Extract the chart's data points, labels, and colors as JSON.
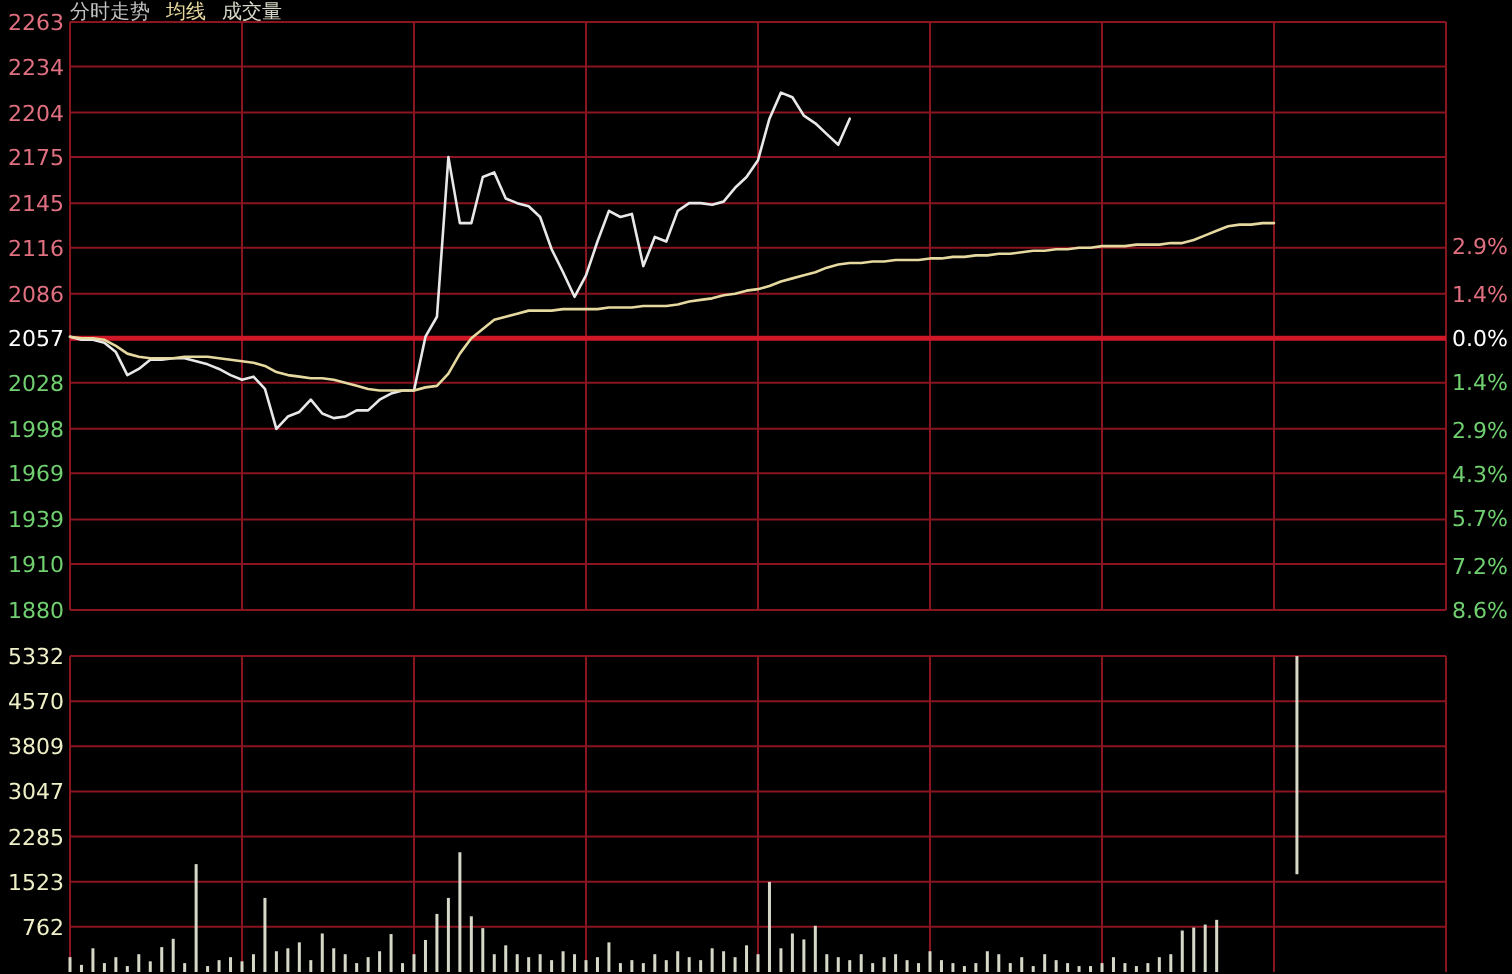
{
  "chart_data": [
    {
      "type": "line",
      "title": "分时走势",
      "tick_labels": "y",
      "grid": true,
      "categories": [
        null,
        null,
        null,
        null,
        null,
        null,
        null,
        null,
        null,
        null,
        null,
        null,
        null,
        null,
        null,
        null,
        null,
        null,
        null,
        null,
        null,
        null,
        null,
        null,
        null,
        null,
        null,
        null,
        null,
        null,
        null,
        null,
        null,
        null,
        null,
        null,
        null,
        null,
        null,
        null,
        null,
        null,
        null,
        null,
        null,
        null,
        null,
        null,
        null,
        null,
        null,
        null,
        null,
        null,
        null,
        null,
        null,
        null,
        null,
        null,
        null,
        null,
        null,
        null,
        null,
        null,
        null,
        null,
        null,
        null,
        null,
        null,
        null,
        null,
        null,
        null,
        null,
        null,
        null,
        null,
        null,
        null,
        null,
        null,
        null,
        null,
        null,
        null,
        null,
        null,
        null,
        null,
        null,
        null,
        null,
        null,
        null,
        null,
        null,
        null,
        null,
        null,
        null,
        null,
        null,
        null,
        null,
        null,
        null,
        null,
        null,
        null,
        null,
        null,
        null,
        null,
        null,
        null,
        null,
        null,
        null
      ],
      "ylim": [
        1880,
        2263
      ],
      "yticks": [
        1880,
        1910,
        1939,
        1969,
        1998,
        2028,
        2057,
        2086,
        2116,
        2145,
        2175,
        2204,
        2234,
        2263
      ],
      "y2lim": [
        -8.6,
        10.0
      ],
      "y2ticks": [
        {
          "value": 2.9,
          "label": "2.9%"
        },
        {
          "value": 1.4,
          "label": "1.4%"
        },
        {
          "value": 0,
          "label": "0.0%"
        },
        {
          "value": -1.4,
          "label": "1.4%"
        },
        {
          "value": -2.9,
          "label": "2.9%"
        },
        {
          "value": -4.3,
          "label": "4.3%"
        },
        {
          "value": -5.7,
          "label": "5.7%"
        },
        {
          "value": -7.2,
          "label": "7.2%"
        },
        {
          "value": -8.6,
          "label": "8.6%"
        }
      ],
      "ref_lines": [
        {
          "axis": "y",
          "value": 2057,
          "color": "#d01828"
        }
      ],
      "series": [
        {
          "color": "#e8e8e8",
          "values": [
            2058,
            2056,
            2056,
            2054,
            2048,
            2033,
            2037,
            2043,
            2043,
            2044,
            2044,
            2042,
            2040,
            2037,
            2033,
            2030,
            2032,
            2024,
            1998,
            2006,
            2009,
            2017,
            2008,
            2005,
            2006,
            2010,
            2010,
            2017,
            2021,
            2023,
            2023,
            2058,
            2071,
            2175,
            2132,
            2132,
            2162,
            2165,
            2148,
            2145,
            2143,
            2136,
            2115,
            2100,
            2084,
            2098,
            2120,
            2140,
            2136,
            2138,
            2104,
            2123,
            2120,
            2140,
            2145,
            2145,
            2144,
            2146,
            2155,
            2162,
            2173,
            2200,
            2217,
            2214,
            2202,
            2197,
            2190,
            2183,
            2200,
            null,
            null,
            null,
            null,
            null,
            null,
            null,
            null,
            null,
            null,
            null,
            null,
            null,
            null,
            null,
            null,
            null,
            null,
            null,
            null,
            null,
            null,
            null,
            null,
            null,
            null,
            null,
            null,
            null,
            null,
            null,
            null,
            null,
            null,
            null,
            null,
            null,
            null,
            null,
            null,
            null,
            null,
            null,
            null,
            null,
            null,
            null,
            null,
            null,
            null,
            null,
            null
          ]
        },
        {
          "name": "均线",
          "color": "#e6d9a0",
          "values": [
            2058,
            2057,
            2057,
            2056,
            2052,
            2047,
            2045,
            2044,
            2044,
            2044,
            2045,
            2045,
            2045,
            2044,
            2043,
            2042,
            2041,
            2039,
            2035,
            2033,
            2032,
            2031,
            2031,
            2030,
            2028,
            2026,
            2024,
            2023,
            2023,
            2023,
            2023,
            2025,
            2026,
            2034,
            2047,
            2057,
            2063,
            2069,
            2071,
            2073,
            2075,
            2075,
            2075,
            2076,
            2076,
            2076,
            2076,
            2077,
            2077,
            2077,
            2078,
            2078,
            2078,
            2079,
            2081,
            2082,
            2083,
            2085,
            2086,
            2088,
            2089,
            2091,
            2094,
            2096,
            2098,
            2100,
            2103,
            2105,
            2106,
            2106,
            2107,
            2107,
            2108,
            2108,
            2108,
            2109,
            2109,
            2110,
            2110,
            2111,
            2111,
            2112,
            2112,
            2113,
            2114,
            2114,
            2115,
            2115,
            2116,
            2116,
            2117,
            2117,
            2117,
            2118,
            2118,
            2118,
            2119,
            2119,
            2121,
            2124,
            2127,
            2130,
            2131,
            2131,
            2132,
            2132,
            null,
            null,
            null,
            null,
            null,
            null,
            null,
            null,
            null,
            null,
            null,
            null,
            null,
            null,
            null
          ]
        }
      ]
    },
    {
      "type": "bar",
      "tick_labels": "y",
      "grid": true,
      "categories": [
        null,
        null,
        null,
        null,
        null,
        null,
        null,
        null,
        null,
        null,
        null,
        null,
        null,
        null,
        null,
        null,
        null,
        null,
        null,
        null,
        null,
        null,
        null,
        null,
        null,
        null,
        null,
        null,
        null,
        null,
        null,
        null,
        null,
        null,
        null,
        null,
        null,
        null,
        null,
        null,
        null,
        null,
        null,
        null,
        null,
        null,
        null,
        null,
        null,
        null,
        null,
        null,
        null,
        null,
        null,
        null,
        null,
        null,
        null,
        null,
        null,
        null,
        null,
        null,
        null,
        null,
        null,
        null,
        null,
        null,
        null,
        null,
        null,
        null,
        null,
        null,
        null,
        null,
        null,
        null,
        null,
        null,
        null,
        null,
        null,
        null,
        null,
        null,
        null,
        null,
        null,
        null,
        null,
        null,
        null,
        null,
        null,
        null,
        null,
        null,
        null,
        null,
        null,
        null,
        null,
        null,
        null,
        null,
        null,
        null,
        null,
        null,
        null,
        null,
        null,
        null,
        null,
        null,
        null,
        null,
        null
      ],
      "ylim": [
        0,
        5332
      ],
      "yticks": [
        762,
        1523,
        2285,
        3047,
        3809,
        4570,
        5332
      ],
      "series": [
        {
          "name": "成交量",
          "color": "#d8d8c8",
          "values": [
            250,
            120,
            400,
            150,
            250,
            100,
            300,
            180,
            420,
            560,
            150,
            1820,
            100,
            200,
            250,
            180,
            300,
            1250,
            350,
            400,
            500,
            200,
            650,
            400,
            300,
            150,
            250,
            350,
            640,
            150,
            300,
            540,
            980,
            1250,
            2020,
            940,
            740,
            300,
            450,
            300,
            250,
            300,
            200,
            350,
            300,
            200,
            250,
            500,
            150,
            200,
            150,
            300,
            200,
            350,
            250,
            200,
            400,
            350,
            250,
            450,
            300,
            1520,
            400,
            650,
            550,
            780,
            300,
            250,
            200,
            300,
            150,
            250,
            300,
            200,
            150,
            350,
            200,
            150,
            100,
            150,
            350,
            300,
            150,
            250,
            100,
            300,
            200,
            150,
            100,
            100,
            150,
            250,
            150,
            100,
            150,
            250,
            300,
            700,
            750,
            800,
            880,
            null,
            null,
            null,
            null,
            null,
            null,
            null,
            null,
            null,
            null,
            null,
            null,
            null,
            null,
            null,
            null,
            null,
            null,
            null,
            null
          ]
        },
        {
          "color": "#d8d8c8",
          "base": [
            null,
            null,
            null,
            null,
            null,
            null,
            null,
            null,
            null,
            null,
            null,
            null,
            null,
            null,
            null,
            null,
            null,
            null,
            null,
            null,
            null,
            null,
            null,
            null,
            null,
            null,
            null,
            null,
            null,
            null,
            null,
            null,
            null,
            null,
            null,
            null,
            null,
            null,
            null,
            null,
            null,
            null,
            null,
            null,
            null,
            null,
            null,
            null,
            null,
            null,
            null,
            null,
            null,
            null,
            null,
            null,
            null,
            null,
            null,
            null,
            null,
            null,
            null,
            null,
            null,
            null,
            null,
            null,
            null,
            null,
            null,
            null,
            null,
            null,
            null,
            null,
            null,
            null,
            null,
            null,
            null,
            null,
            null,
            null,
            null,
            null,
            null,
            null,
            null,
            null,
            null,
            null,
            null,
            null,
            null,
            null,
            null,
            null,
            null,
            null,
            null,
            null,
            null,
            null,
            null,
            null,
            null,
            1650,
            null,
            null,
            null,
            null,
            null,
            null,
            null,
            null,
            null,
            null,
            null,
            null,
            null
          ],
          "values": [
            null,
            null,
            null,
            null,
            null,
            null,
            null,
            null,
            null,
            null,
            null,
            null,
            null,
            null,
            null,
            null,
            null,
            null,
            null,
            null,
            null,
            null,
            null,
            null,
            null,
            null,
            null,
            null,
            null,
            null,
            null,
            null,
            null,
            null,
            null,
            null,
            null,
            null,
            null,
            null,
            null,
            null,
            null,
            null,
            null,
            null,
            null,
            null,
            null,
            null,
            null,
            null,
            null,
            null,
            null,
            null,
            null,
            null,
            null,
            null,
            null,
            null,
            null,
            null,
            null,
            null,
            null,
            null,
            null,
            null,
            null,
            null,
            null,
            null,
            null,
            null,
            null,
            null,
            null,
            null,
            null,
            null,
            null,
            null,
            null,
            null,
            null,
            null,
            null,
            null,
            null,
            null,
            null,
            null,
            null,
            null,
            null,
            null,
            null,
            null,
            null,
            null,
            null,
            null,
            null,
            null,
            null,
            3680,
            null,
            null,
            null,
            null,
            null,
            null,
            null,
            null,
            null,
            null,
            null,
            null,
            null
          ]
        }
      ]
    }
  ]
}
